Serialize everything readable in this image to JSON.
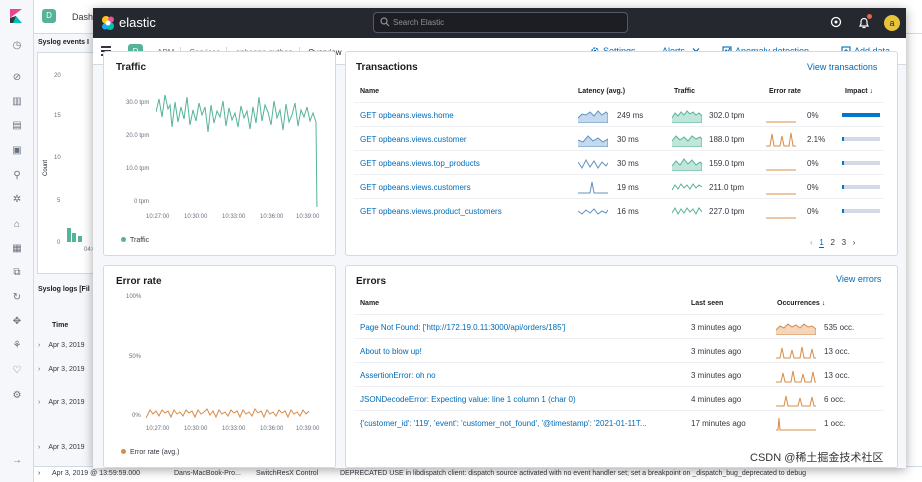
{
  "background": {
    "left_nav_icons": [
      "clock-icon",
      "compass-icon",
      "visualize-icon",
      "dashboard-icon",
      "canvas-icon",
      "maps-icon",
      "ml-icon",
      "infra-icon",
      "logs-icon",
      "apm-icon",
      "uptime-icon",
      "siem-icon",
      "dev-tools-icon",
      "monitoring-icon",
      "management-icon"
    ],
    "space_letter": "D",
    "tab_label": "Dash",
    "syslog_events_title": "Syslog events I",
    "count_label": "Count",
    "y_ticks": [
      "20",
      "15",
      "10",
      "5",
      "0"
    ],
    "x_tick": "04:0",
    "syslog_logs_title": "Syslog logs [Fil",
    "time_header": "Time",
    "rows": [
      "Apr 3, 2019",
      "Apr 3, 2019",
      "Apr 3, 2019",
      "Apr 3, 2019"
    ],
    "bottom_row": {
      "time": "Apr 3, 2019 @ 13:59:59.000",
      "host": "Dans-MacBook-Pro...",
      "program": "SwitchResX Control",
      "message": "DEPRECATED USE in libdispatch client: dispatch source activated with no event handler set; set a breakpoint on _dispatch_bug_deprecated to debug"
    }
  },
  "header": {
    "brand": "elastic",
    "search_placeholder": "Search Elastic",
    "avatar_letter": "a"
  },
  "nav": {
    "space_letter": "D",
    "breadcrumbs": [
      "APM",
      "Services",
      "opbeans-python",
      "Overview"
    ],
    "settings": "Settings",
    "alerts": "Alerts",
    "anomaly": "Anomaly detection",
    "add_data": "Add data"
  },
  "traffic": {
    "title": "Traffic",
    "y_ticks": [
      "30.0 tpm",
      "20.0 tpm",
      "10.0 tpm",
      "0 tpm"
    ],
    "x_ticks": [
      "10:27:00",
      "10:30:00",
      "10:33:00",
      "10:36:00",
      "10:39:00"
    ],
    "legend": "Traffic",
    "color": "#54b399"
  },
  "error_rate": {
    "title": "Error rate",
    "y_ticks": [
      "100%",
      "50%",
      "0%"
    ],
    "x_ticks": [
      "10:27:00",
      "10:30:00",
      "10:33:00",
      "10:36:00",
      "10:39:00"
    ],
    "legend": "Error rate (avg.)",
    "color": "#da8b45"
  },
  "transactions": {
    "title": "Transactions",
    "view_link": "View transactions",
    "columns": [
      "Name",
      "Latency (avg.)",
      "Traffic",
      "Error rate",
      "Impact"
    ],
    "rows": [
      {
        "name": "GET opbeans.views.home",
        "latency": "249 ms",
        "traffic": "302.0 tpm",
        "error_rate": "0%",
        "impact": 1.0
      },
      {
        "name": "GET opbeans.views.customer",
        "latency": "30 ms",
        "traffic": "188.0 tpm",
        "error_rate": "2.1%",
        "impact": 0.06
      },
      {
        "name": "GET opbeans.views.top_products",
        "latency": "30 ms",
        "traffic": "159.0 tpm",
        "error_rate": "0%",
        "impact": 0.05
      },
      {
        "name": "GET opbeans.views.customers",
        "latency": "19 ms",
        "traffic": "211.0 tpm",
        "error_rate": "0%",
        "impact": 0.04
      },
      {
        "name": "GET opbeans.views.product_customers",
        "latency": "16 ms",
        "traffic": "227.0 tpm",
        "error_rate": "0%",
        "impact": 0.04
      }
    ],
    "pages": [
      "1",
      "2",
      "3"
    ]
  },
  "errors": {
    "title": "Errors",
    "view_link": "View errors",
    "columns": [
      "Name",
      "Last seen",
      "Occurrences"
    ],
    "rows": [
      {
        "name": "Page Not Found: ['http://172.19.0.11:3000/api/orders/185']",
        "last_seen": "3 minutes ago",
        "occurrences": "535 occ."
      },
      {
        "name": "About to blow up!",
        "last_seen": "3 minutes ago",
        "occurrences": "13 occ."
      },
      {
        "name": "AssertionError: oh no",
        "last_seen": "3 minutes ago",
        "occurrences": "13 occ."
      },
      {
        "name": "JSONDecodeError: Expecting value: line 1 column 1 (char 0)",
        "last_seen": "4 minutes ago",
        "occurrences": "6 occ."
      },
      {
        "name": "{'customer_id': '119', 'event': 'customer_not_found', '@timestamp': '2021-01-11T...",
        "last_seen": "17 minutes ago",
        "occurrences": "1 occ."
      }
    ]
  },
  "watermark": "CSDN @稀土掘金技术社区"
}
